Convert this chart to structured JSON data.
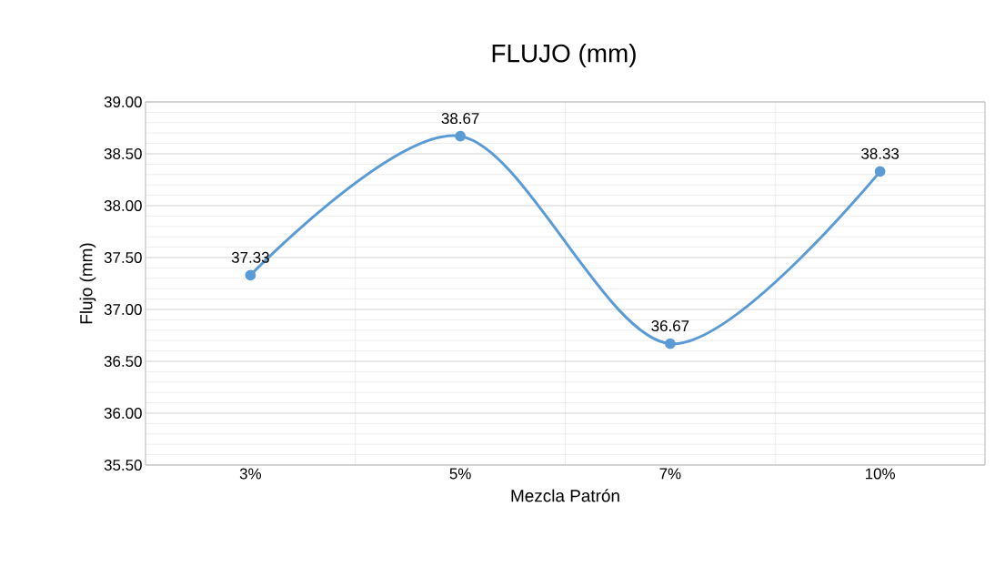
{
  "chart_data": {
    "type": "line",
    "title": "FLUJO (mm)",
    "xlabel": "Mezcla Patrón",
    "ylabel": "Flujo (mm)",
    "categories": [
      "3%",
      "5%",
      "7%",
      "10%"
    ],
    "values": [
      37.33,
      38.67,
      36.67,
      38.33
    ],
    "color": "#5b9bd5",
    "ylim": [
      35.5,
      39
    ],
    "yticks": [
      {
        "value": 35.5,
        "label": "35.50"
      },
      {
        "value": 36,
        "label": "36.00"
      },
      {
        "value": 36.5,
        "label": "36.50"
      },
      {
        "value": 37,
        "label": "37.00"
      },
      {
        "value": 37.5,
        "label": "37.50"
      },
      {
        "value": 38,
        "label": "38.00"
      },
      {
        "value": 38.5,
        "label": "38.50"
      },
      {
        "value": 39,
        "label": "39.00"
      }
    ],
    "grid": true,
    "marker": "circle",
    "line_style": "solid",
    "data_labels": true
  }
}
